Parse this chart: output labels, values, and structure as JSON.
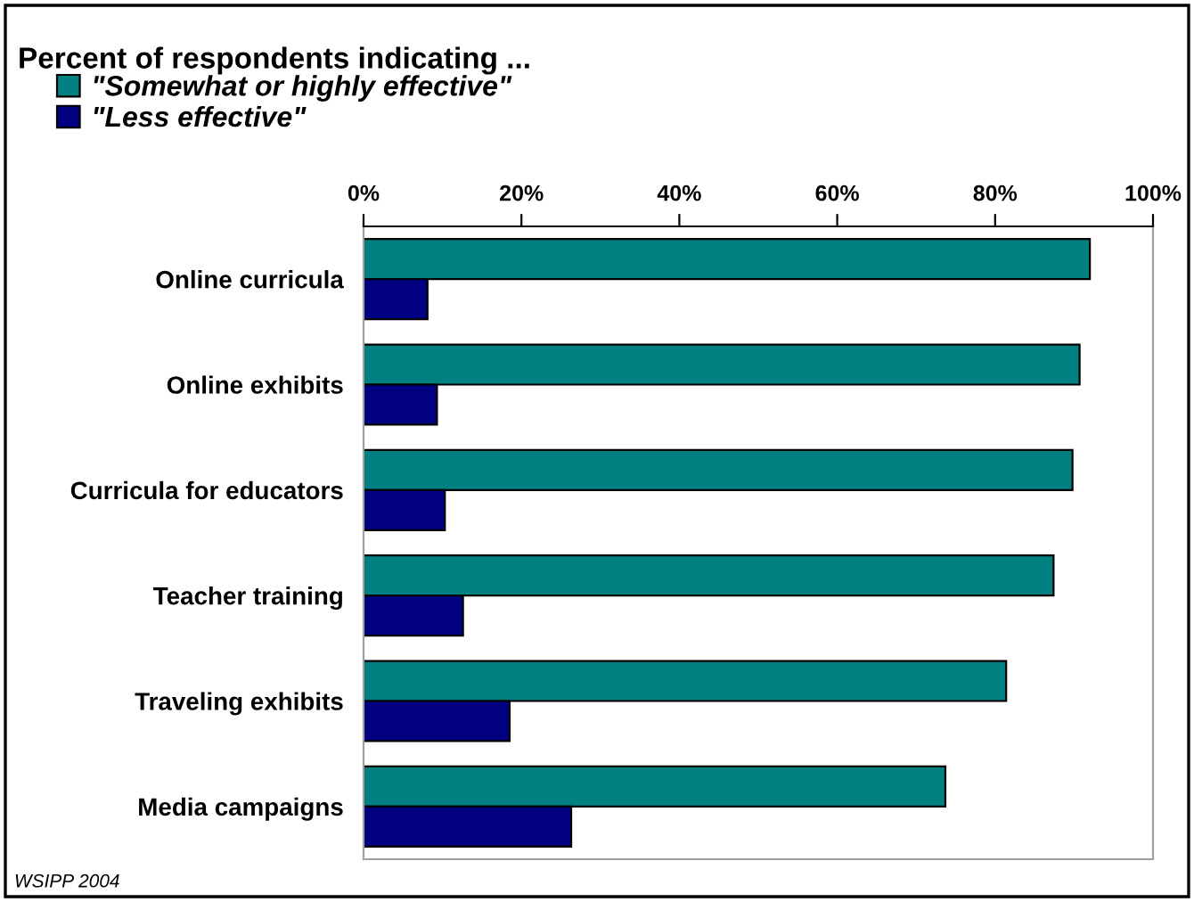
{
  "chart_data": {
    "type": "bar",
    "orientation": "horizontal",
    "title": "Percent of respondents indicating ...",
    "categories": [
      "Online curricula",
      "Online exhibits",
      "Curricula for educators",
      "Teacher training",
      "Traveling exhibits",
      "Media campaigns"
    ],
    "series": [
      {
        "name": "\"Somewhat or highly effective\"",
        "color": "#008080",
        "values": [
          92.0,
          90.7,
          89.8,
          87.4,
          81.4,
          73.7
        ]
      },
      {
        "name": "\"Less effective\"",
        "color": "#000080",
        "values": [
          8.1,
          9.3,
          10.3,
          12.6,
          18.5,
          26.3
        ]
      }
    ],
    "xlim": [
      0,
      100
    ],
    "xticks": [
      {
        "value": 0,
        "label": "0%"
      },
      {
        "value": 20,
        "label": "20%"
      },
      {
        "value": 40,
        "label": "40%"
      },
      {
        "value": 60,
        "label": "60%"
      },
      {
        "value": 80,
        "label": "80%"
      },
      {
        "value": 100,
        "label": "100%"
      }
    ],
    "grid": false,
    "legend": "top left",
    "annotations": [
      "WSIPP 2004"
    ]
  }
}
